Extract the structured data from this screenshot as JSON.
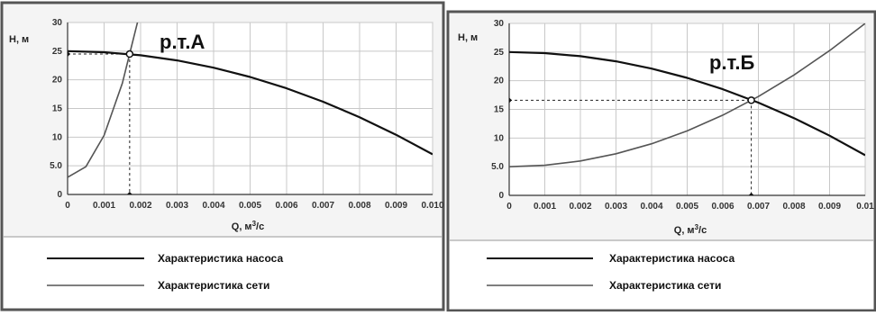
{
  "chart_data": [
    {
      "type": "line",
      "annotation": "р.т.А",
      "ylabel": "H, м",
      "xlabel_prefix": "Q, м",
      "xlabel_sup": "3",
      "xlabel_suffix": "/с",
      "xlim": [
        0,
        0.01
      ],
      "ylim": [
        0,
        30
      ],
      "x_tick_labels": [
        "0",
        "0.001",
        "0.002",
        "0.003",
        "0.004",
        "0.005",
        "0.006",
        "0.007",
        "0.008",
        "0.009",
        "0.010"
      ],
      "y_tick_labels": [
        "0",
        "5.0",
        "10",
        "15",
        "20",
        "25",
        "30"
      ],
      "grid": true,
      "legend_placement": "bottom",
      "series": [
        {
          "name": "Характеристика насоса",
          "x": [
            0,
            0.001,
            0.002,
            0.003,
            0.004,
            0.005,
            0.006,
            0.007,
            0.008,
            0.009,
            0.01
          ],
          "y": [
            25,
            24.82,
            24.28,
            23.38,
            22.12,
            20.5,
            18.52,
            16.18,
            13.48,
            10.42,
            7
          ]
        },
        {
          "name": "Характеристика сети",
          "x": [
            0,
            0.0005,
            0.001,
            0.0015,
            0.0017,
            0.002,
            0.00225
          ],
          "y": [
            3,
            4.83,
            10.3,
            19.43,
            24.5,
            32.2,
            40.6
          ]
        }
      ],
      "operating_point": {
        "x": 0.0017,
        "y": 24.5
      }
    },
    {
      "type": "line",
      "annotation": "р.т.Б",
      "ylabel": "H, м",
      "xlabel_prefix": "Q, м",
      "xlabel_sup": "3",
      "xlabel_suffix": "/с",
      "xlim": [
        0,
        0.01
      ],
      "ylim": [
        0,
        30
      ],
      "x_tick_labels": [
        "0",
        "0.001",
        "0.002",
        "0.003",
        "0.004",
        "0.005",
        "0.006",
        "0.007",
        "0.008",
        "0.009",
        "0.01"
      ],
      "y_tick_labels": [
        "0",
        "5.0",
        "10",
        "15",
        "20",
        "25",
        "30"
      ],
      "grid": true,
      "legend_placement": "bottom",
      "series": [
        {
          "name": "Характеристика насоса",
          "x": [
            0,
            0.001,
            0.002,
            0.003,
            0.004,
            0.005,
            0.006,
            0.007,
            0.008,
            0.009,
            0.01
          ],
          "y": [
            25,
            24.82,
            24.28,
            23.38,
            22.12,
            20.5,
            18.52,
            16.18,
            13.48,
            10.42,
            7
          ]
        },
        {
          "name": "Характеристика сети",
          "x": [
            0,
            0.001,
            0.002,
            0.003,
            0.004,
            0.005,
            0.006,
            0.007,
            0.008,
            0.009,
            0.01
          ],
          "y": [
            5,
            5.25,
            6,
            7.25,
            9,
            11.25,
            14,
            17.25,
            21,
            25.25,
            30
          ]
        }
      ],
      "operating_point": {
        "x": 0.0068,
        "y": 16.6
      }
    }
  ]
}
